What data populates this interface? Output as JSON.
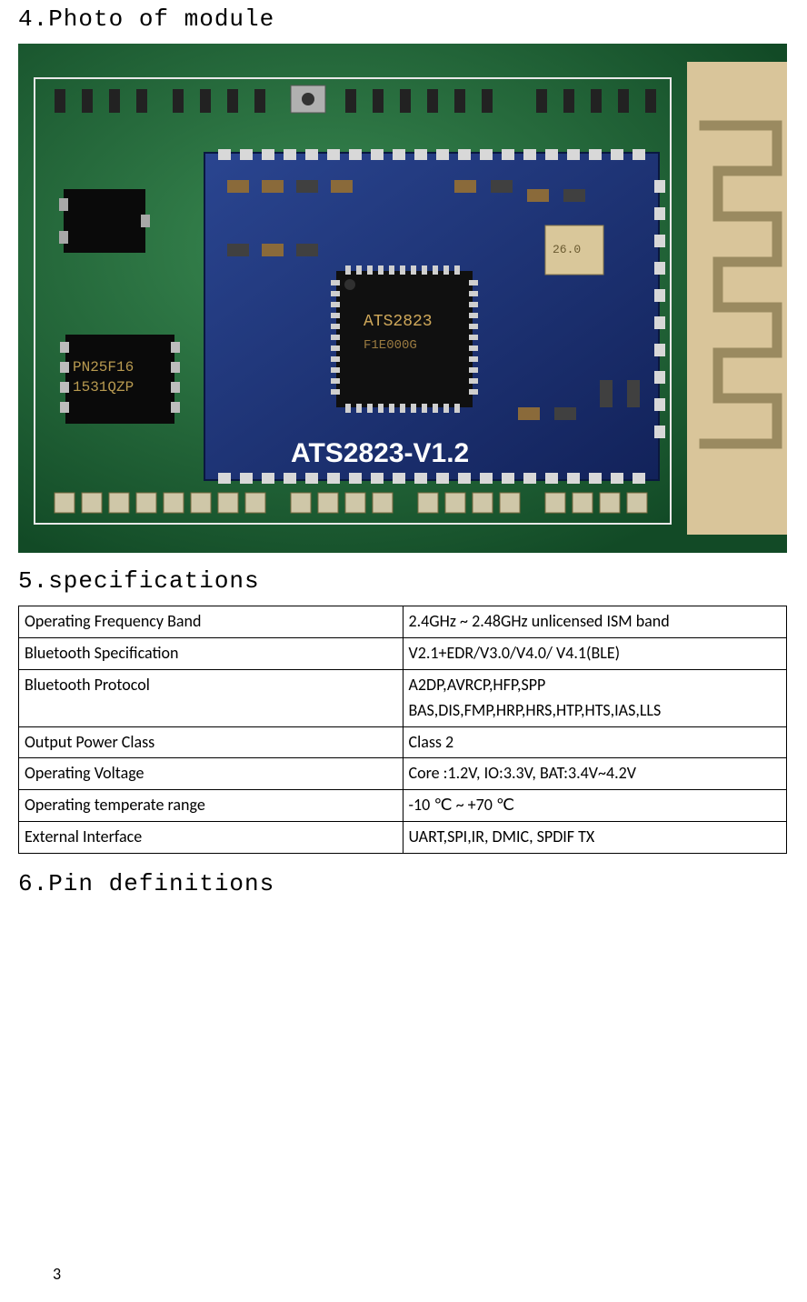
{
  "headings": {
    "h4": "4.Photo of module",
    "h5": "5.specifications",
    "h6": "6.Pin definitions"
  },
  "photo": {
    "pcb_label": "ATS2823-V1.2",
    "colors": {
      "board_green": "#1e6b3a",
      "board_green_light": "#3a8a52",
      "silk_white": "#e8e8e8",
      "module_blue": "#1a2f6b",
      "module_blue_light": "#2a4590",
      "chip_black": "#151515",
      "copper_tan": "#d9c59a",
      "pad_silver": "#c8c8c8",
      "pad_gold": "#cfc7a8",
      "solder_gray": "#888888"
    }
  },
  "spec_table": {
    "rows": [
      {
        "label": "Operating Frequency Band",
        "value": "2.4GHz ~ 2.48GHz unlicensed ISM band"
      },
      {
        "label": "Bluetooth Specification",
        "value": "V2.1+EDR/V3.0/V4.0/ V4.1(BLE)"
      },
      {
        "label": "Bluetooth Protocol",
        "value": "A2DP,AVRCP,HFP,SPP\nBAS,DIS,FMP,HRP,HRS,HTP,HTS,IAS,LLS"
      },
      {
        "label": "Output Power Class",
        "value": "Class 2"
      },
      {
        "label": "Operating Voltage",
        "value": "Core :1.2V, IO:3.3V, BAT:3.4V~4.2V"
      },
      {
        "label": "Operating temperate range",
        "value": "-10  ℃  ~ +70    ℃"
      },
      {
        "label": "External Interface",
        "value": "UART,SPI,IR, DMIC, SPDIF TX"
      }
    ]
  },
  "page_number": "3"
}
